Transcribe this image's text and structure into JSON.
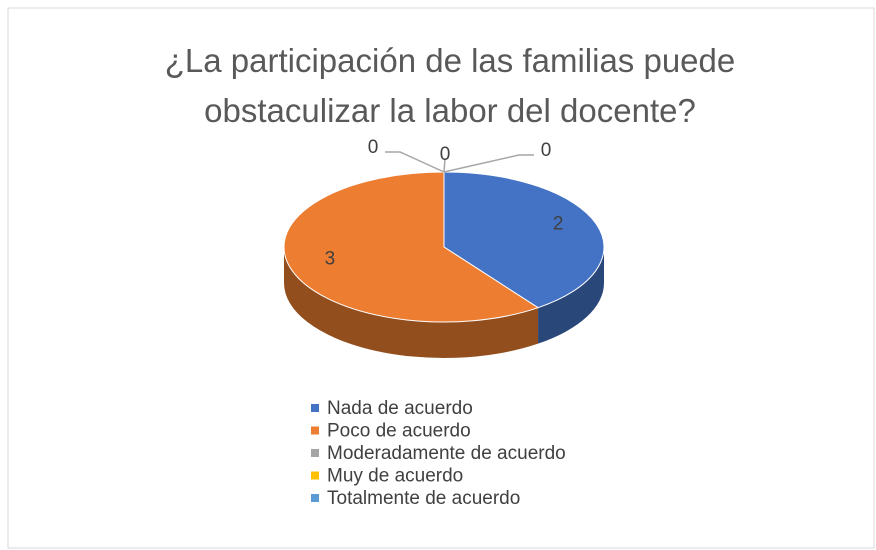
{
  "chart_data": {
    "type": "pie",
    "title": "¿La participación de las familias puede obstaculizar la labor del docente?",
    "categories": [
      "Nada de acuerdo",
      "Poco de acuerdo",
      "Moderadamente de acuerdo",
      "Muy de acuerdo",
      "Totalmente de acuerdo"
    ],
    "values": [
      2,
      3,
      0,
      0,
      0
    ],
    "colors": [
      "#4472c4",
      "#ed7d31",
      "#a5a5a5",
      "#ffc000",
      "#5b9bd5"
    ],
    "legend": "bottom"
  }
}
